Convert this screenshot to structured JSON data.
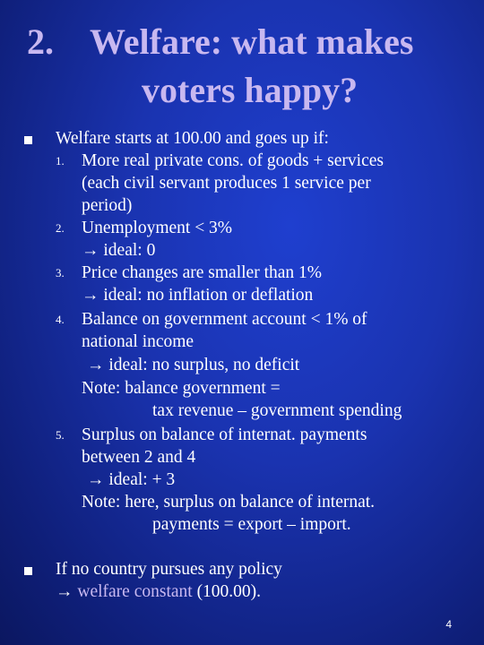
{
  "slide": {
    "title_number": "2.",
    "title_line1": "Welfare: what makes",
    "title_line2": "voters happy?",
    "bullet1": {
      "intro": "Welfare starts at 100.00 and goes up if:",
      "items": [
        {
          "num": "1.",
          "lines": [
            "More real private cons. of goods  + services",
            "(each civil servant produces 1 service per",
            "period)"
          ]
        },
        {
          "num": "2.",
          "lines": [
            "Unemployment < 3%",
            "→ ideal: 0"
          ]
        },
        {
          "num": "3.",
          "lines": [
            "Price changes are smaller than 1%",
            "→ ideal: no inflation or deflation"
          ]
        },
        {
          "num": "4.",
          "lines": [
            "Balance on government account < 1% of",
            "national income",
            "→ ideal: no surplus, no deficit",
            "Note:   balance government =",
            "tax revenue – government spending"
          ]
        },
        {
          "num": "5.",
          "lines": [
            "Surplus on balance of internat. payments",
            "between 2 and 4",
            "→ ideal: + 3",
            "Note:   here, surplus on balance of internat.",
            "payments = export – import."
          ]
        }
      ]
    },
    "bullet2": {
      "line1": "If no country pursues any policy",
      "line2_prefix": "→ ",
      "line2_accent": "welfare constant",
      "line2_suffix": " (100.00)."
    },
    "page_number": "4"
  },
  "colors": {
    "background": "#1a33b0",
    "title": "#c8b8f0",
    "text": "#ffffff"
  }
}
